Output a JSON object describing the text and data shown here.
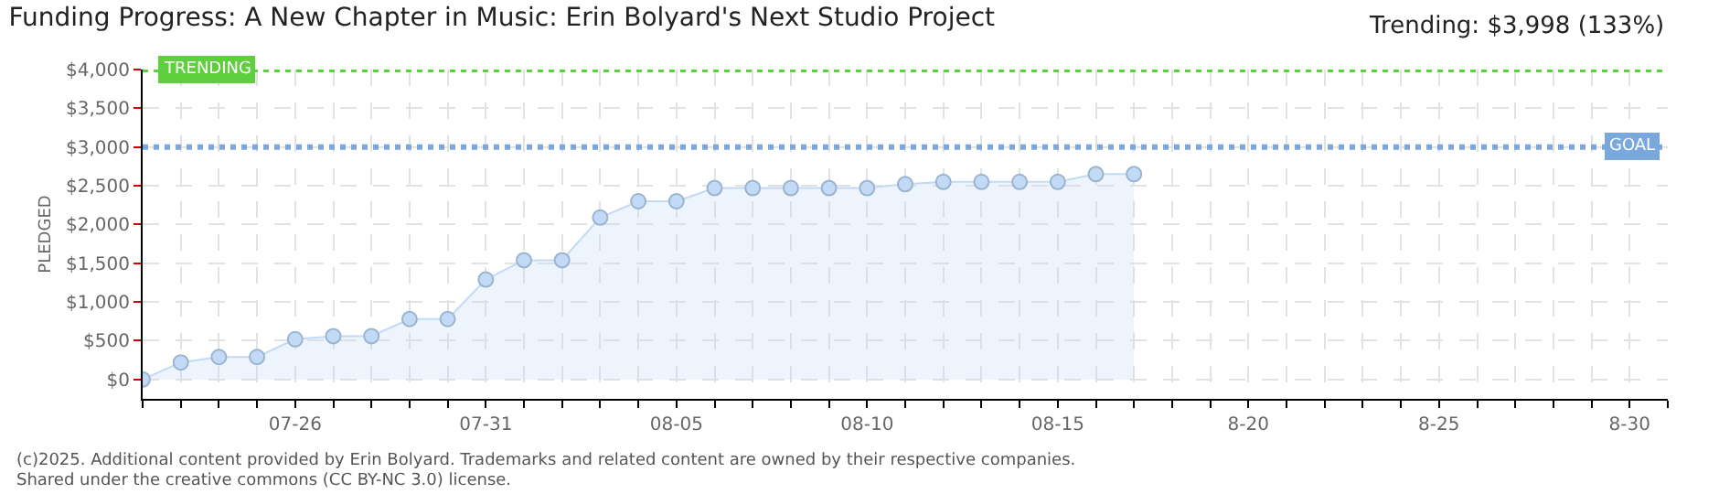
{
  "chart_data": {
    "type": "area",
    "title": "Funding Progress: A New Chapter in Music: Erin Bolyard's Next Studio Project",
    "subtitle": "Trending: $3,998 (133%)",
    "ylabel": "PLEDGED",
    "x": [
      "--07-22",
      "--07-23",
      "--07-24",
      "--07-25",
      "--07-26",
      "--07-27",
      "--07-28",
      "--07-29",
      "--07-30",
      "--07-31",
      "--08-01",
      "--08-02",
      "--08-03",
      "--08-04",
      "--08-05",
      "--08-06",
      "--08-07",
      "--08-08",
      "--08-09",
      "--08-10",
      "--08-11",
      "--08-12",
      "--08-13",
      "--08-14",
      "--08-15",
      "--08-16",
      "--08-17"
    ],
    "series": [
      {
        "color": "#c2daf5",
        "values": [
          0,
          220,
          290,
          290,
          520,
          560,
          560,
          780,
          780,
          1290,
          1540,
          1540,
          2090,
          2300,
          2300,
          2470,
          2470,
          2470,
          2470,
          2470,
          2520,
          2550,
          2550,
          2550,
          2550,
          2650,
          2650
        ]
      }
    ],
    "xlim": [
      "--07-22",
      "--08-31"
    ],
    "xticks": [
      {
        "value": "--07-22",
        "label": null
      },
      {
        "value": "--07-23",
        "label": null
      },
      {
        "value": "--07-24",
        "label": null
      },
      {
        "value": "--07-25",
        "label": null
      },
      {
        "value": "--07-26",
        "label": "07-26"
      },
      {
        "value": "--07-27",
        "label": null
      },
      {
        "value": "--07-28",
        "label": null
      },
      {
        "value": "--07-29",
        "label": null
      },
      {
        "value": "--07-30",
        "label": null
      },
      {
        "value": "--07-31",
        "label": "07-31"
      },
      {
        "value": "--08-01",
        "label": null
      },
      {
        "value": "--08-02",
        "label": null
      },
      {
        "value": "--08-03",
        "label": null
      },
      {
        "value": "--08-04",
        "label": null
      },
      {
        "value": "--08-05",
        "label": "08-05"
      },
      {
        "value": "--08-06",
        "label": null
      },
      {
        "value": "--08-07",
        "label": null
      },
      {
        "value": "--08-08",
        "label": null
      },
      {
        "value": "--08-09",
        "label": null
      },
      {
        "value": "--08-10",
        "label": "08-10"
      },
      {
        "value": "--08-11",
        "label": null
      },
      {
        "value": "--08-12",
        "label": null
      },
      {
        "value": "--08-13",
        "label": null
      },
      {
        "value": "--08-14",
        "label": null
      },
      {
        "value": "--08-15",
        "label": "08-15"
      },
      {
        "value": "--08-16",
        "label": null
      },
      {
        "value": "--08-17",
        "label": null
      },
      {
        "value": "--08-18",
        "label": null
      },
      {
        "value": "--08-19",
        "label": null
      },
      {
        "value": "--08-20",
        "label": "8-20"
      },
      {
        "value": "--08-21",
        "label": null
      },
      {
        "value": "--08-22",
        "label": null
      },
      {
        "value": "--08-23",
        "label": null
      },
      {
        "value": "--08-24",
        "label": null
      },
      {
        "value": "--08-25",
        "label": "8-25"
      },
      {
        "value": "--08-26",
        "label": null
      },
      {
        "value": "--08-27",
        "label": null
      },
      {
        "value": "--08-28",
        "label": null
      },
      {
        "value": "--08-29",
        "label": null
      },
      {
        "value": "--08-30",
        "label": "8-30"
      },
      {
        "value": "--08-31",
        "label": null
      }
    ],
    "ylim": [
      -250,
      4000
    ],
    "yticks": [
      {
        "value": 0,
        "label": "$0"
      },
      {
        "value": 500,
        "label": "$500"
      },
      {
        "value": 1000,
        "label": "$1,000"
      },
      {
        "value": 1500,
        "label": "$1,500"
      },
      {
        "value": 2000,
        "label": "$2,000"
      },
      {
        "value": 2500,
        "label": "$2,500"
      },
      {
        "value": 3000,
        "label": "$3,000"
      },
      {
        "value": 3500,
        "label": "$3,500"
      },
      {
        "value": 4000,
        "label": "$4,000"
      }
    ],
    "ref_lines": [
      {
        "axis": "y",
        "value": 4000,
        "label": "TRENDING",
        "color": "#5fcf3f",
        "line_style": "dotted"
      },
      {
        "axis": "y",
        "value": 3000,
        "label": "GOAL",
        "color": "#7aa8dc",
        "line_style": "dotted"
      }
    ],
    "annotations": [
      "(c)2025. Additional content provided by Erin Bolyard. Trademarks and related content are owned by their respective companies.",
      "Shared under the creative commons (CC BY-NC 3.0) license."
    ],
    "grid": true,
    "marker": "circle",
    "line_style": "solid"
  }
}
